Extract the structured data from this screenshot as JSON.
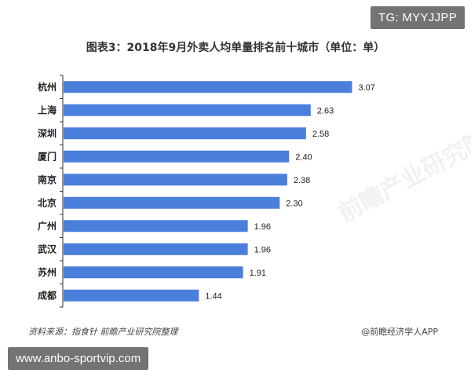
{
  "tag_badge": "TG: MYYJJPP",
  "url_badge": "www.anbo-sportvip.com",
  "footer": {
    "source": "资料来源：指食针  前瞻产业研究院整理",
    "credit": "@前瞻经济学人APP"
  },
  "watermark": "前瞻产业研究院",
  "colors": {
    "bar": "#4a7fdc",
    "axis": "#333333"
  },
  "chart_data": {
    "type": "bar",
    "orientation": "horizontal",
    "title": "图表3：2018年9月外卖人均单量排名前十城市（单位：单）",
    "categories": [
      "杭州",
      "上海",
      "深圳",
      "厦门",
      "南京",
      "北京",
      "广州",
      "武汉",
      "苏州",
      "成都"
    ],
    "values": [
      3.07,
      2.63,
      2.58,
      2.4,
      2.38,
      2.3,
      1.96,
      1.96,
      1.91,
      1.44
    ],
    "value_labels": [
      "3.07",
      "2.63",
      "2.58",
      "2.40",
      "2.38",
      "2.30",
      "1.96",
      "1.96",
      "1.91",
      "1.44"
    ],
    "xlim": [
      0,
      3.3
    ],
    "grid": false,
    "legend": "none"
  }
}
